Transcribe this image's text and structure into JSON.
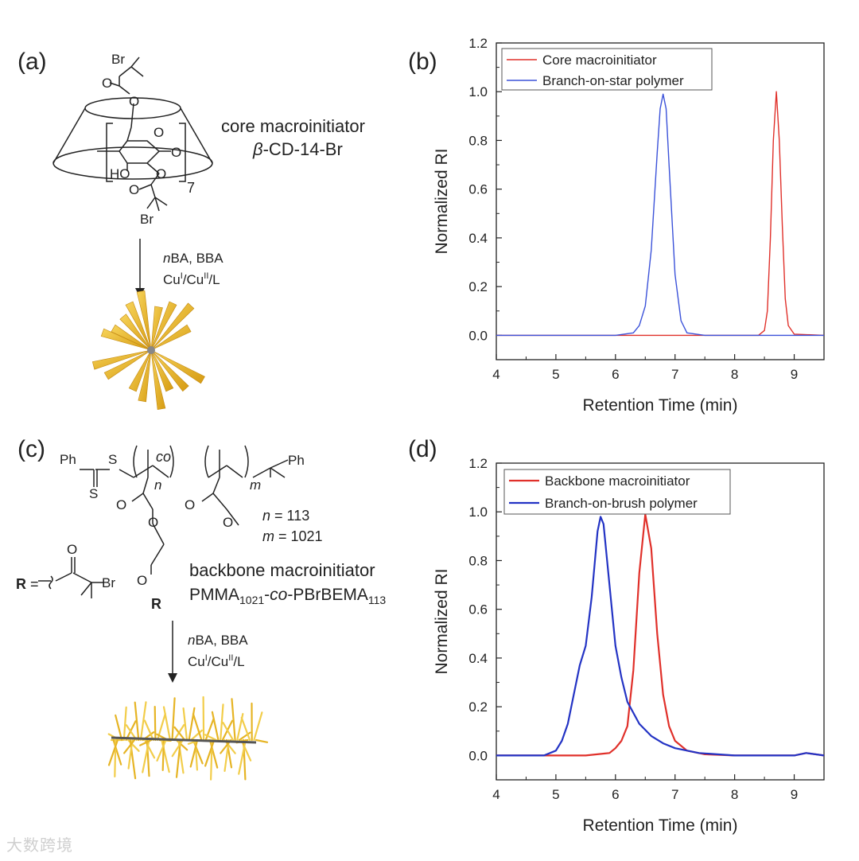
{
  "panels": {
    "a": {
      "tag": "(a)",
      "name": "core macroinitiator",
      "label_beta": "β",
      "label_rest": "-CD-14-Br",
      "reagent_n": "n",
      "reagent_rest": "BA, BBA",
      "cu1": "Cu",
      "cu1_sup": "I",
      "cu_sep": "/Cu",
      "cu2_sup": "II",
      "cu_tail": "/L",
      "repeat": "7",
      "atoms": {
        "br": "Br",
        "o": "O",
        "ho": "HO"
      }
    },
    "b": {
      "tag": "(b)"
    },
    "c": {
      "tag": "(c)",
      "ph": "Ph",
      "s": "S",
      "co": "co",
      "n_sub": "n",
      "m_sub": "m",
      "n_label": "n",
      "n_value": " = 113",
      "m_label": "m",
      "m_value": " = 1021",
      "r_bold": "R",
      "r_eq": " =",
      "name": "backbone macroinitiator",
      "formula_a": "PMMA",
      "formula_a_sub": "1021",
      "formula_mid": "-",
      "formula_co": "co",
      "formula_b": "-PBrBEMA",
      "formula_b_sub": "113",
      "reagent_n": "n",
      "reagent_rest": "BA, BBA",
      "cu1": "Cu",
      "cu1_sup": "I",
      "cu_sep": "/Cu",
      "cu2_sup": "II",
      "cu_tail": "/L",
      "atoms": {
        "br": "Br",
        "o": "O"
      }
    },
    "d": {
      "tag": "(d)"
    }
  },
  "watermark": "大数跨境",
  "chart_data": [
    {
      "type": "line",
      "panel": "b",
      "xlabel": "Retention Time (min)",
      "ylabel": "Normalized RI",
      "xlim": [
        4,
        9.5
      ],
      "ylim": [
        -0.1,
        1.2
      ],
      "xticks": [
        "4",
        "5",
        "6",
        "7",
        "8",
        "9"
      ],
      "yticks": [
        "0.0",
        "0.2",
        "0.4",
        "0.6",
        "0.8",
        "1.0",
        "1.2"
      ],
      "legend_position": "top-left",
      "grid": false,
      "series": [
        {
          "name": "Core macroinitiator",
          "color": "#e0302a",
          "x": [
            4.0,
            8.0,
            8.4,
            8.5,
            8.55,
            8.6,
            8.65,
            8.7,
            8.75,
            8.8,
            8.85,
            8.9,
            9.0,
            9.5
          ],
          "y": [
            0.0,
            0.0,
            0.0,
            0.02,
            0.1,
            0.4,
            0.8,
            1.0,
            0.8,
            0.45,
            0.15,
            0.04,
            0.005,
            0.0
          ]
        },
        {
          "name": "Branch-on-star polymer",
          "color": "#3b52d9",
          "x": [
            4.0,
            6.0,
            6.3,
            6.4,
            6.5,
            6.6,
            6.7,
            6.75,
            6.8,
            6.85,
            6.9,
            7.0,
            7.1,
            7.2,
            7.5,
            9.5
          ],
          "y": [
            0.0,
            0.0,
            0.01,
            0.04,
            0.12,
            0.35,
            0.75,
            0.93,
            0.99,
            0.93,
            0.7,
            0.25,
            0.06,
            0.01,
            0.0,
            0.0
          ]
        }
      ]
    },
    {
      "type": "line",
      "panel": "d",
      "xlabel": "Retention Time (min)",
      "ylabel": "Normalized RI",
      "xlim": [
        4,
        9.5
      ],
      "ylim": [
        -0.1,
        1.2
      ],
      "xticks": [
        "4",
        "5",
        "6",
        "7",
        "8",
        "9"
      ],
      "yticks": [
        "0.0",
        "0.2",
        "0.4",
        "0.6",
        "0.8",
        "1.0",
        "1.2"
      ],
      "legend_position": "top-left",
      "grid": false,
      "series": [
        {
          "name": "Backbone macroinitiator",
          "color": "#e0302a",
          "x": [
            4.0,
            5.5,
            5.9,
            6.0,
            6.1,
            6.2,
            6.3,
            6.4,
            6.5,
            6.6,
            6.7,
            6.8,
            6.9,
            7.0,
            7.2,
            7.5,
            8.0,
            9.0,
            9.2,
            9.5
          ],
          "y": [
            0.0,
            0.0,
            0.01,
            0.03,
            0.06,
            0.12,
            0.35,
            0.75,
            0.99,
            0.85,
            0.5,
            0.25,
            0.12,
            0.06,
            0.02,
            0.005,
            0.0,
            0.0,
            0.01,
            0.0
          ]
        },
        {
          "name": "Branch-on-brush polymer",
          "color": "#2333c4",
          "x": [
            4.0,
            4.8,
            5.0,
            5.1,
            5.2,
            5.3,
            5.4,
            5.5,
            5.6,
            5.7,
            5.75,
            5.8,
            5.9,
            6.0,
            6.1,
            6.2,
            6.4,
            6.6,
            6.8,
            7.0,
            7.4,
            8.0,
            9.0,
            9.2,
            9.5
          ],
          "y": [
            0.0,
            0.0,
            0.02,
            0.06,
            0.13,
            0.25,
            0.37,
            0.45,
            0.65,
            0.92,
            0.98,
            0.95,
            0.7,
            0.45,
            0.32,
            0.22,
            0.13,
            0.08,
            0.05,
            0.03,
            0.01,
            0.0,
            0.0,
            0.01,
            0.0
          ]
        }
      ]
    }
  ]
}
